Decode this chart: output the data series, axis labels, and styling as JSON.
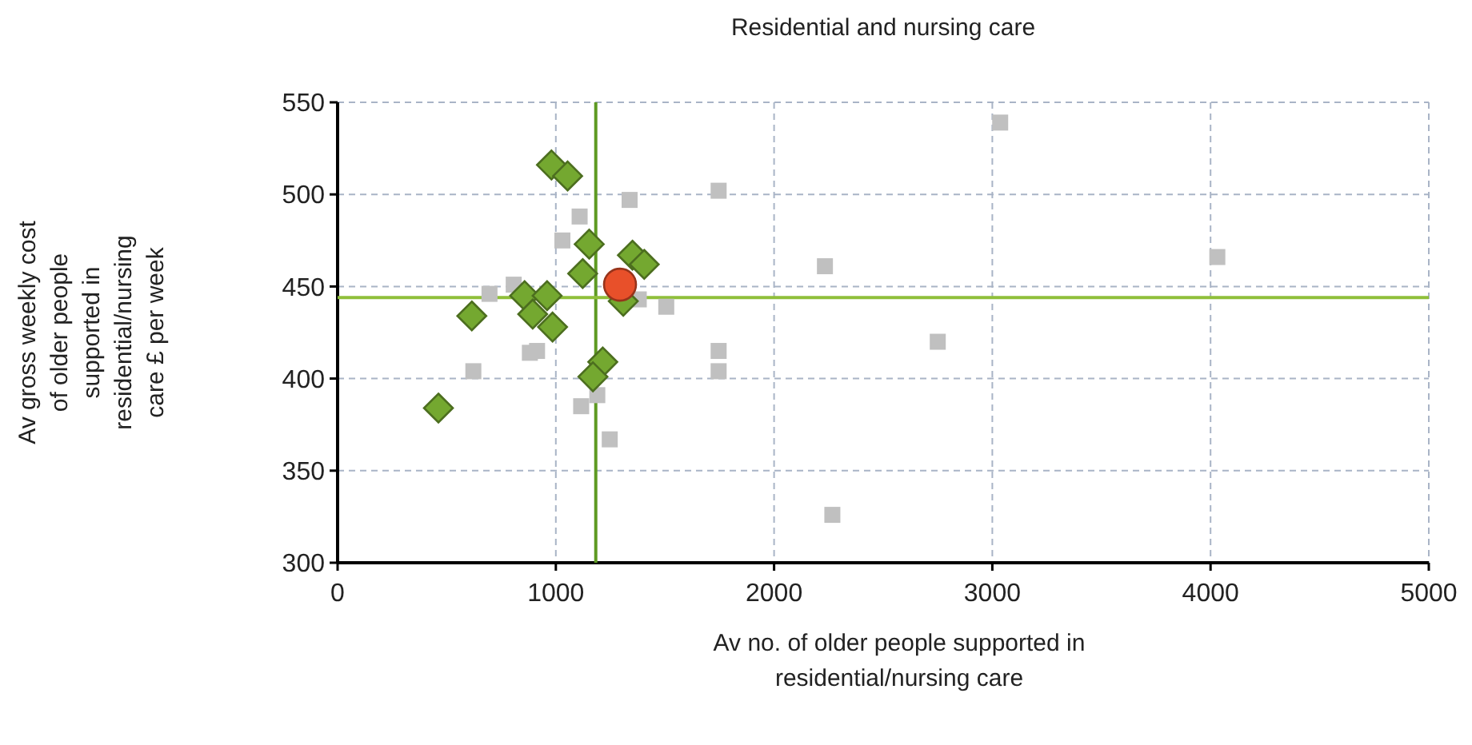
{
  "chart_data": {
    "type": "scatter",
    "title": "Residential and nursing care",
    "xlabel": "Av no. of older people supported in residential/nursing care",
    "ylabel": "Av gross weekly cost of older people supported in residential/nursing care £ per week",
    "xlim": [
      0,
      5000
    ],
    "xticks": [
      0,
      1000,
      2000,
      3000,
      4000,
      5000
    ],
    "ylim": [
      300,
      550
    ],
    "yticks": [
      300,
      350,
      400,
      450,
      500,
      550
    ],
    "grid": true,
    "ref_lines": [
      {
        "axis": "x",
        "value": 1183,
        "color": "#5e9a22"
      },
      {
        "axis": "y",
        "value": 444,
        "color": "#8fbf3a"
      }
    ],
    "series": [
      {
        "color": "#c0c0c0",
        "marker": "square",
        "x": [
          1746,
          1338,
          1109,
          1030,
          807,
          696,
          1380,
          1506,
          1746,
          1746,
          881,
          914,
          622,
          1116,
          1190,
          1247,
          2233,
          2750,
          3036,
          4031,
          2267
        ],
        "values": [
          502,
          497,
          488,
          475,
          451,
          446,
          443,
          439,
          415,
          404,
          414,
          415,
          404,
          385,
          391,
          367,
          461,
          420,
          539,
          466,
          326
        ]
      },
      {
        "color": "#74a830",
        "marker": "diamond",
        "x": [
          980,
          1054,
          1153,
          1351,
          1405,
          1123,
          857,
          960,
          894,
          615,
          985,
          1215,
          1170,
          462,
          1309
        ],
        "values": [
          516,
          510,
          473,
          467,
          462,
          457,
          445,
          445,
          435,
          434,
          428,
          409,
          401,
          384,
          442
        ]
      },
      {
        "color": "#e8502a",
        "marker": "circle",
        "x": [
          1294
        ],
        "values": [
          451
        ]
      }
    ]
  }
}
